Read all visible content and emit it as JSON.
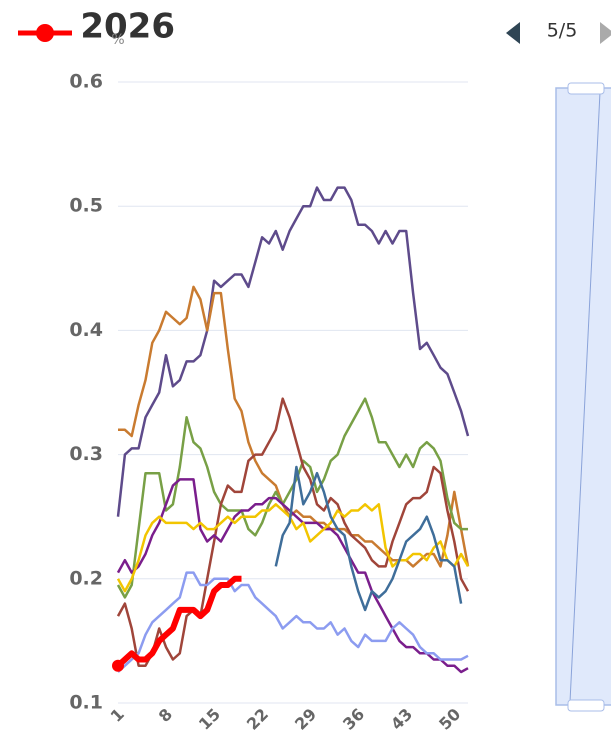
{
  "chart_data": {
    "type": "line",
    "ylabel": "%",
    "legend_page": "5/5",
    "categories": [
      1,
      null,
      null,
      null,
      null,
      null,
      null,
      8,
      null,
      null,
      null,
      null,
      null,
      null,
      15,
      null,
      null,
      null,
      null,
      null,
      null,
      22,
      null,
      null,
      null,
      null,
      null,
      null,
      29,
      null,
      null,
      null,
      null,
      null,
      null,
      36,
      null,
      null,
      null,
      null,
      null,
      null,
      43,
      null,
      null,
      null,
      null,
      null,
      null,
      50,
      null,
      null
    ],
    "ylim": [
      0.1,
      0.6
    ],
    "yticks": [
      0.1,
      0.2,
      0.3,
      0.4,
      0.5,
      0.6
    ],
    "grid": true,
    "series": [
      {
        "color": "#5e4b8b",
        "values": [
          0.25,
          0.3,
          0.305,
          0.305,
          0.33,
          0.34,
          0.35,
          0.38,
          0.355,
          0.36,
          0.375,
          0.375,
          0.38,
          0.4,
          0.44,
          0.435,
          0.44,
          0.445,
          0.445,
          0.435,
          0.455,
          0.475,
          0.47,
          0.48,
          0.465,
          0.48,
          0.49,
          0.5,
          0.5,
          0.515,
          0.505,
          0.505,
          0.515,
          0.515,
          0.505,
          0.485,
          0.485,
          0.48,
          0.47,
          0.48,
          0.47,
          0.48,
          0.48,
          0.43,
          0.385,
          0.39,
          0.38,
          0.37,
          0.365,
          0.35,
          0.335,
          0.315
        ]
      },
      {
        "color": "#c97b30",
        "values": [
          0.32,
          0.32,
          0.315,
          0.34,
          0.36,
          0.39,
          0.4,
          0.415,
          0.41,
          0.405,
          0.41,
          0.435,
          0.425,
          0.4,
          0.43,
          0.43,
          0.385,
          0.345,
          0.335,
          0.31,
          0.295,
          0.285,
          0.28,
          0.275,
          0.26,
          0.25,
          0.255,
          0.25,
          0.25,
          0.245,
          0.245,
          0.24,
          0.24,
          0.24,
          0.235,
          0.235,
          0.23,
          0.23,
          0.225,
          0.22,
          0.215,
          0.215,
          0.215,
          0.21,
          0.215,
          0.22,
          0.22,
          0.21,
          0.235,
          0.27,
          0.24,
          0.21
        ]
      },
      {
        "color": "#78a046",
        "values": [
          0.195,
          0.185,
          0.195,
          0.24,
          0.285,
          0.285,
          0.285,
          0.255,
          0.26,
          0.29,
          0.33,
          0.31,
          0.305,
          0.29,
          0.27,
          0.26,
          0.255,
          0.255,
          0.255,
          0.24,
          0.235,
          0.245,
          0.26,
          0.27,
          0.26,
          0.27,
          0.28,
          0.295,
          0.29,
          0.27,
          0.28,
          0.295,
          0.3,
          0.315,
          0.325,
          0.335,
          0.345,
          0.33,
          0.31,
          0.31,
          0.3,
          0.29,
          0.3,
          0.29,
          0.305,
          0.31,
          0.305,
          0.295,
          0.265,
          0.245,
          0.24,
          0.24
        ]
      },
      {
        "color": "#a0453a",
        "values": [
          0.17,
          0.18,
          0.16,
          0.13,
          0.13,
          0.14,
          0.16,
          0.145,
          0.135,
          0.14,
          0.17,
          0.175,
          0.17,
          0.2,
          0.23,
          0.26,
          0.275,
          0.27,
          0.27,
          0.295,
          0.3,
          0.3,
          0.31,
          0.32,
          0.345,
          0.33,
          0.31,
          0.29,
          0.28,
          0.26,
          0.255,
          0.265,
          0.26,
          0.245,
          0.235,
          0.23,
          0.225,
          0.215,
          0.21,
          0.21,
          0.23,
          0.245,
          0.26,
          0.265,
          0.265,
          0.27,
          0.29,
          0.285,
          0.255,
          0.23,
          0.2,
          0.19
        ]
      },
      {
        "color": "#7a1e8c",
        "values": [
          0.205,
          0.215,
          0.205,
          0.21,
          0.22,
          0.235,
          0.245,
          0.26,
          0.275,
          0.28,
          0.28,
          0.28,
          0.24,
          0.23,
          0.235,
          0.23,
          0.24,
          0.25,
          0.255,
          0.255,
          0.26,
          0.26,
          0.265,
          0.265,
          0.26,
          0.255,
          0.25,
          0.245,
          0.245,
          0.245,
          0.24,
          0.24,
          0.235,
          0.225,
          0.215,
          0.205,
          0.205,
          0.19,
          0.18,
          0.17,
          0.16,
          0.15,
          0.145,
          0.145,
          0.14,
          0.14,
          0.135,
          0.135,
          0.13,
          0.13,
          0.125,
          0.128
        ]
      },
      {
        "color": "#f2c500",
        "values": [
          0.2,
          0.19,
          0.2,
          0.215,
          0.235,
          0.245,
          0.25,
          0.245,
          0.245,
          0.245,
          0.245,
          0.24,
          0.245,
          0.24,
          0.24,
          0.245,
          0.25,
          0.245,
          0.25,
          0.25,
          0.25,
          0.255,
          0.255,
          0.26,
          0.255,
          0.25,
          0.24,
          0.245,
          0.23,
          0.235,
          0.24,
          0.245,
          0.255,
          0.25,
          0.255,
          0.255,
          0.26,
          0.255,
          0.26,
          0.225,
          0.21,
          0.215,
          0.215,
          0.22,
          0.22,
          0.215,
          0.225,
          0.23,
          0.215,
          0.21,
          0.22,
          0.21
        ]
      },
      {
        "color": "#3f6e9a",
        "values": [
          null,
          null,
          null,
          null,
          null,
          null,
          null,
          null,
          null,
          null,
          null,
          null,
          null,
          null,
          null,
          null,
          null,
          null,
          null,
          null,
          null,
          null,
          null,
          0.21,
          0.235,
          0.245,
          0.29,
          0.26,
          0.27,
          0.285,
          0.27,
          0.25,
          0.24,
          0.235,
          0.21,
          0.19,
          0.175,
          0.19,
          0.185,
          0.19,
          0.2,
          0.215,
          0.23,
          0.235,
          0.24,
          0.25,
          0.235,
          0.215,
          0.215,
          0.21,
          0.18,
          null
        ]
      },
      {
        "color": "#8c9cf0",
        "values": [
          0.125,
          0.13,
          0.135,
          0.14,
          0.155,
          0.165,
          0.17,
          0.175,
          0.18,
          0.185,
          0.205,
          0.205,
          0.195,
          0.195,
          0.2,
          0.2,
          0.2,
          0.19,
          0.195,
          0.195,
          0.185,
          0.18,
          0.175,
          0.17,
          0.16,
          0.165,
          0.17,
          0.165,
          0.165,
          0.16,
          0.16,
          0.165,
          0.155,
          0.16,
          0.15,
          0.145,
          0.155,
          0.15,
          0.15,
          0.15,
          0.16,
          0.165,
          0.16,
          0.155,
          0.145,
          0.14,
          0.14,
          0.135,
          0.135,
          0.135,
          0.135,
          0.138
        ]
      },
      {
        "name": "2026",
        "color": "#ff0000",
        "values": [
          0.13,
          0.135,
          0.14,
          0.135,
          0.135,
          0.14,
          0.15,
          0.155,
          0.16,
          0.175,
          0.175,
          0.175,
          0.17,
          0.175,
          0.19,
          0.195,
          0.195,
          0.2,
          0.2,
          null,
          null,
          null,
          null,
          null,
          null,
          null,
          null,
          null,
          null,
          null,
          null,
          null,
          null,
          null,
          null,
          null,
          null,
          null,
          null,
          null,
          null,
          null,
          null,
          null,
          null,
          null,
          null,
          null,
          null,
          null,
          null,
          null
        ]
      }
    ]
  }
}
